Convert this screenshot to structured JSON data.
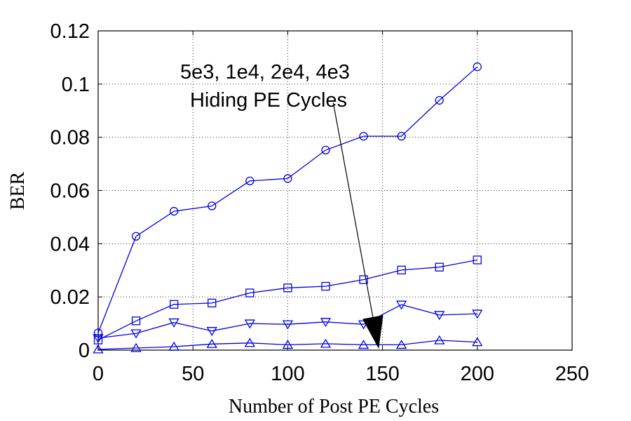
{
  "chart_data": {
    "type": "line",
    "xlabel": "Number of Post PE Cycles",
    "ylabel": "BER",
    "xlim": [
      0,
      250
    ],
    "ylim": [
      0,
      0.12
    ],
    "xticks": [
      0,
      50,
      100,
      150,
      200,
      250
    ],
    "yticks": [
      0,
      0.02,
      0.04,
      0.06,
      0.08,
      0.1,
      0.12
    ],
    "xtick_labels": [
      "0",
      "50",
      "100",
      "150",
      "200",
      "250"
    ],
    "ytick_labels": [
      "0",
      "0.02",
      "0.04",
      "0.06",
      "0.08",
      "0.1",
      "0.12"
    ],
    "grid": true,
    "line_color": "#0000e6",
    "x": [
      0,
      20,
      40,
      60,
      80,
      100,
      120,
      140,
      160,
      180,
      200
    ],
    "series": [
      {
        "marker": "circle",
        "values": [
          0.0065,
          0.0428,
          0.0522,
          0.0542,
          0.0636,
          0.0645,
          0.0752,
          0.0804,
          0.0804,
          0.0939,
          0.1065
        ]
      },
      {
        "marker": "square",
        "values": [
          0.0038,
          0.011,
          0.0172,
          0.0177,
          0.0215,
          0.0234,
          0.024,
          0.0265,
          0.0301,
          0.0312,
          0.0339
        ]
      },
      {
        "marker": "triangle-down",
        "values": [
          0.0045,
          0.0063,
          0.0104,
          0.0072,
          0.01,
          0.0097,
          0.0106,
          0.0097,
          0.0171,
          0.0132,
          0.0137
        ]
      },
      {
        "marker": "triangle-up",
        "values": [
          0.0003,
          0.0008,
          0.0013,
          0.0023,
          0.0027,
          0.002,
          0.0024,
          0.002,
          0.002,
          0.0037,
          0.003
        ]
      }
    ],
    "annotation": {
      "lines": [
        "5e3, 1e4, 2e4, 4e3",
        "Hiding PE Cycles"
      ],
      "arrow_target": [
        148,
        0.0005
      ],
      "arrow_start": [
        124,
        0.093
      ]
    }
  }
}
